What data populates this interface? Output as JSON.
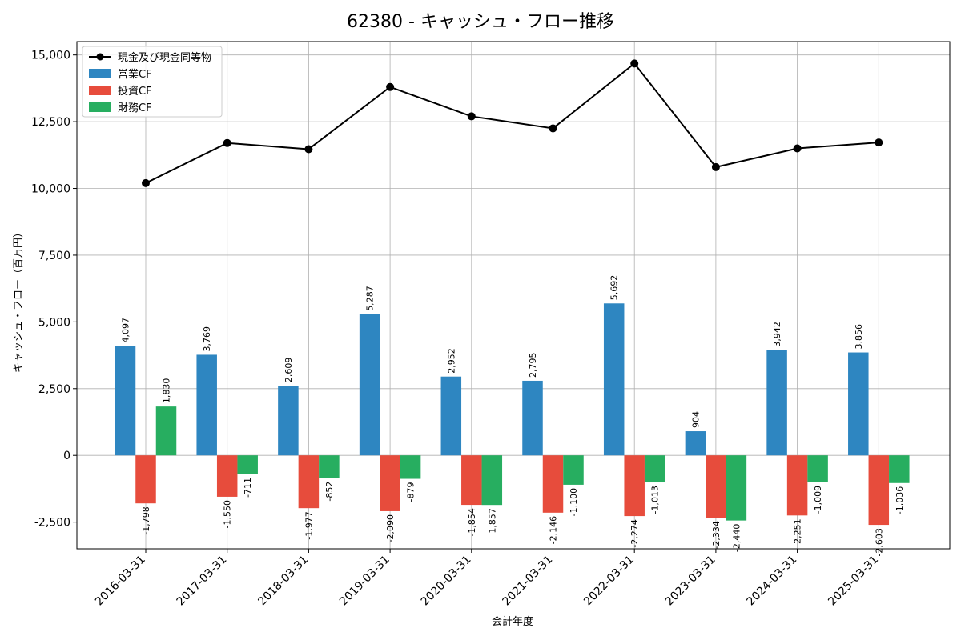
{
  "chart_data": {
    "type": "bar",
    "title": "62380 - キャッシュ・フロー推移",
    "xlabel": "会計年度",
    "ylabel": "キャッシュ・フロー（百万円）",
    "ylim": [
      -3500,
      15500
    ],
    "yticks": [
      -2500,
      0,
      2500,
      5000,
      7500,
      10000,
      12500,
      15000
    ],
    "ytick_labels": [
      "-2,500",
      "0",
      "2,500",
      "5,000",
      "7,500",
      "10,000",
      "12,500",
      "15,000"
    ],
    "grid": true,
    "legend_position": "top-left",
    "categories": [
      "2016-03-31",
      "2017-03-31",
      "2018-03-31",
      "2019-03-31",
      "2020-03-31",
      "2021-03-31",
      "2022-03-31",
      "2023-03-31",
      "2024-03-31",
      "2025-03-31"
    ],
    "series": [
      {
        "name": "営業CF",
        "type": "bar",
        "color": "#2e86c1",
        "values": [
          4097,
          3769,
          2609,
          5287,
          2952,
          2795,
          5692,
          904,
          3942,
          3856
        ],
        "labels": [
          "4,097",
          "3,769",
          "2,609",
          "5,287",
          "2,952",
          "2,795",
          "5,692",
          "904",
          "3,942",
          "3,856"
        ]
      },
      {
        "name": "投資CF",
        "type": "bar",
        "color": "#e74c3c",
        "values": [
          -1798,
          -1550,
          -1977,
          -2090,
          -1854,
          -2146,
          -2274,
          -2334,
          -2251,
          -2603
        ],
        "labels": [
          "-1,798",
          "-1,550",
          "-1,977",
          "-2,090",
          "-1,854",
          "-2,146",
          "-2,274",
          "-2,334",
          "-2,251",
          "-2,603"
        ]
      },
      {
        "name": "財務CF",
        "type": "bar",
        "color": "#27ae60",
        "values": [
          1830,
          -711,
          -852,
          -879,
          -1857,
          -1100,
          -1013,
          -2440,
          -1009,
          -1036
        ],
        "labels": [
          "1,830",
          "-711",
          "-852",
          "-879",
          "-1,857",
          "-1,100",
          "-1,013",
          "-2,440",
          "-1,009",
          "-1,036"
        ]
      },
      {
        "name": "現金及び現金同等物",
        "type": "line",
        "color": "#000000",
        "values": [
          10200,
          11700,
          11470,
          13800,
          12700,
          12250,
          14680,
          10800,
          11500,
          11720
        ]
      }
    ]
  }
}
